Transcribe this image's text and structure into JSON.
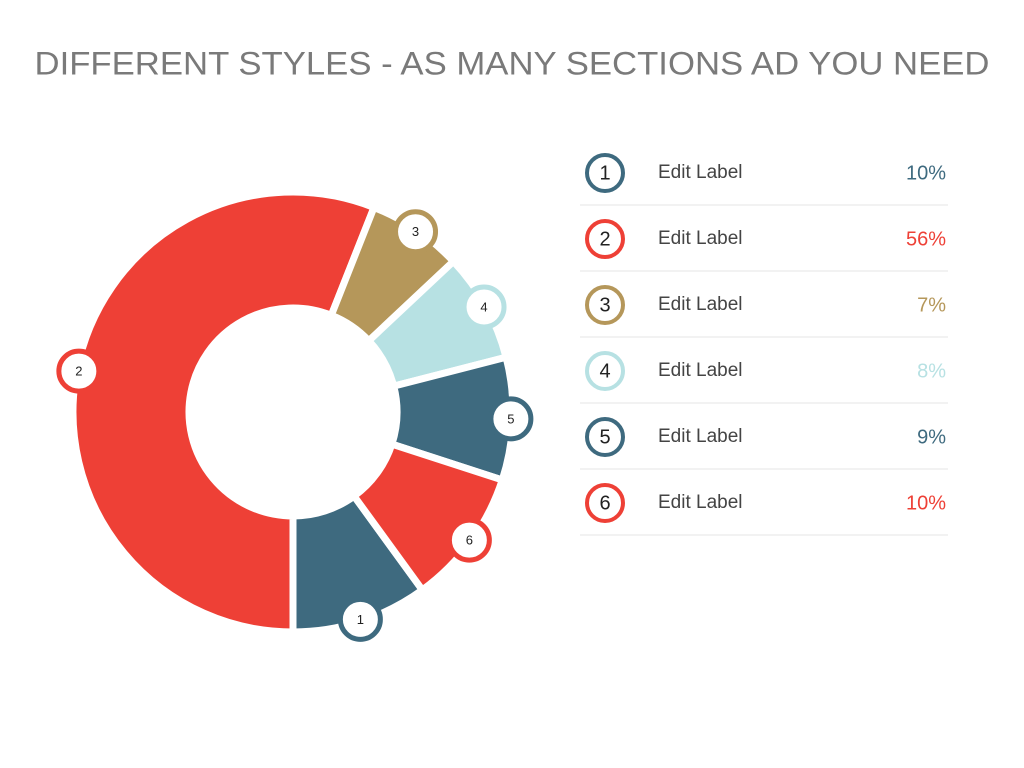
{
  "chart_data": {
    "type": "donut",
    "title": "DIFFERENT STYLES - AS MANY SECTIONS AD YOU NEED",
    "section_numbers": [
      "1",
      "2",
      "3",
      "4",
      "5",
      "6"
    ],
    "categories": [
      "Edit Label",
      "Edit Label",
      "Edit Label",
      "Edit Label",
      "Edit Label",
      "Edit Label"
    ],
    "values": [
      10,
      56,
      7,
      8,
      9,
      10
    ],
    "value_labels": [
      "10%",
      "56%",
      "7%",
      "8%",
      "9%",
      "10%"
    ],
    "colors": [
      "#3e6a7f",
      "#ee4036",
      "#b5975a",
      "#b7e1e3",
      "#3e6a7f",
      "#ee4036"
    ]
  }
}
